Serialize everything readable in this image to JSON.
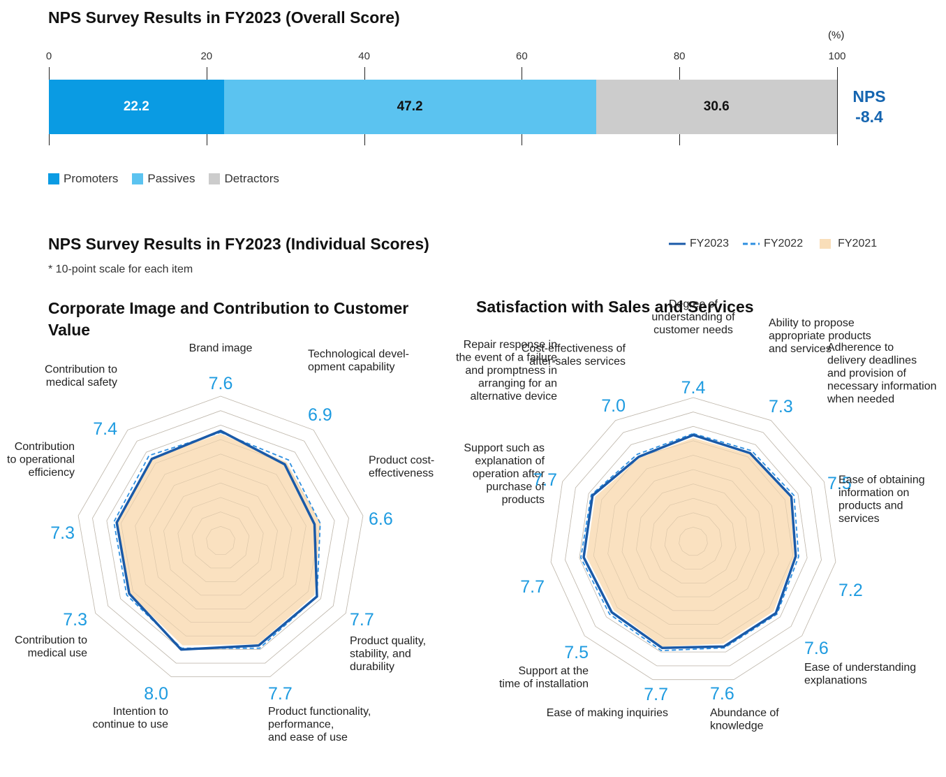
{
  "chart_data": [
    {
      "type": "bar",
      "title": "NPS Survey Results in FY2023 (Overall Score)",
      "unit": "(%)",
      "xlim": [
        0,
        100
      ],
      "ticks": [
        "0",
        "20",
        "40",
        "60",
        "80",
        "100"
      ],
      "series": [
        {
          "name": "Promoters",
          "value": 22.2,
          "label": "22.2",
          "color": "#0a9be3"
        },
        {
          "name": "Passives",
          "value": 47.2,
          "label": "47.2",
          "color": "#5bc3f0"
        },
        {
          "name": "Detractors",
          "value": 30.6,
          "label": "30.6",
          "color": "#cccccc"
        }
      ],
      "nps_label": "NPS",
      "nps_value": "-8.4"
    },
    {
      "type": "radar",
      "title": "Corporate Image and Contribution to Customer Value",
      "scale_max": 10,
      "axes": [
        {
          "label": "Brand image",
          "value": "7.6"
        },
        {
          "label": "Technological devel-\nopment capability",
          "value": "6.9"
        },
        {
          "label": "Product cost-\neffectiveness",
          "value": "6.6"
        },
        {
          "label": "Product quality,\nstability, and\ndurability",
          "value": "7.7"
        },
        {
          "label": "Product functionality,\nperformance,\nand ease of use",
          "value": "7.7"
        },
        {
          "label": "Intention to\ncontinue to use",
          "value": "8.0"
        },
        {
          "label": "Contribution to\nmedical use",
          "value": "7.3"
        },
        {
          "label": "Contribution\nto operational\nefficiency",
          "value": "7.3"
        },
        {
          "label": "Contribution to\nmedical safety",
          "value": "7.4"
        }
      ],
      "series": [
        {
          "name": "FY2023",
          "values": [
            7.6,
            6.9,
            6.6,
            7.7,
            7.7,
            8.0,
            7.3,
            7.3,
            7.4
          ]
        },
        {
          "name": "FY2022",
          "values": [
            7.5,
            7.3,
            7.0,
            7.7,
            7.9,
            7.9,
            7.5,
            7.5,
            7.7
          ]
        },
        {
          "name": "FY2021",
          "values": [
            7.4,
            7.1,
            7.0,
            7.5,
            7.6,
            7.7,
            7.3,
            7.3,
            7.5
          ]
        }
      ]
    },
    {
      "type": "radar",
      "title": "Satisfaction with Sales and Services",
      "scale_max": 10,
      "axes": [
        {
          "label": "Degree of\nunderstanding of\ncustomer needs",
          "value": "7.4"
        },
        {
          "label": "Ability to propose\nappropriate products\nand services",
          "value": "7.3"
        },
        {
          "label": "Adherence to\ndelivery deadlines\nand provision of\nnecessary information\nwhen needed",
          "value": "7.5"
        },
        {
          "label": "Ease of obtaining\ninformation on\nproducts and\nservices",
          "value": "7.2"
        },
        {
          "label": "Ease of understanding\nexplanations",
          "value": "7.6"
        },
        {
          "label": "Abundance of\nknowledge",
          "value": "7.6"
        },
        {
          "label": "Ease of making inquiries",
          "value": "7.7"
        },
        {
          "label": "Support at the\ntime of installation",
          "value": "7.5"
        },
        {
          "label": "Support such as\nexplanation of\noperation after\npurchase of\nproducts",
          "value": "7.7"
        },
        {
          "label": "Repair response in\nthe event of a failure\nand promptness in\narranging for an\nalternative device",
          "value": "7.7"
        },
        {
          "label": "Cost-effectiveness of\nafter-sales services",
          "value": "7.0"
        }
      ],
      "series": [
        {
          "name": "FY2023",
          "values": [
            7.4,
            7.3,
            7.5,
            7.2,
            7.6,
            7.6,
            7.7,
            7.5,
            7.7,
            7.7,
            7.0
          ]
        },
        {
          "name": "FY2022",
          "values": [
            7.5,
            7.5,
            7.7,
            7.4,
            7.7,
            7.7,
            7.9,
            7.7,
            7.9,
            7.8,
            7.2
          ]
        },
        {
          "name": "FY2021",
          "values": [
            7.2,
            7.2,
            7.4,
            7.1,
            7.4,
            7.4,
            7.6,
            7.3,
            7.5,
            7.5,
            6.9
          ]
        }
      ]
    }
  ],
  "individual": {
    "title": "NPS Survey Results in FY2023 (Individual Scores)",
    "note": "* 10-point scale for each item",
    "legend": [
      {
        "name": "FY2023",
        "color": "#1a5aa8",
        "style": "solid"
      },
      {
        "name": "FY2022",
        "color": "#2e8fe0",
        "style": "dashed"
      },
      {
        "name": "FY2021",
        "color": "#f9deb9",
        "style": "fill"
      }
    ]
  }
}
